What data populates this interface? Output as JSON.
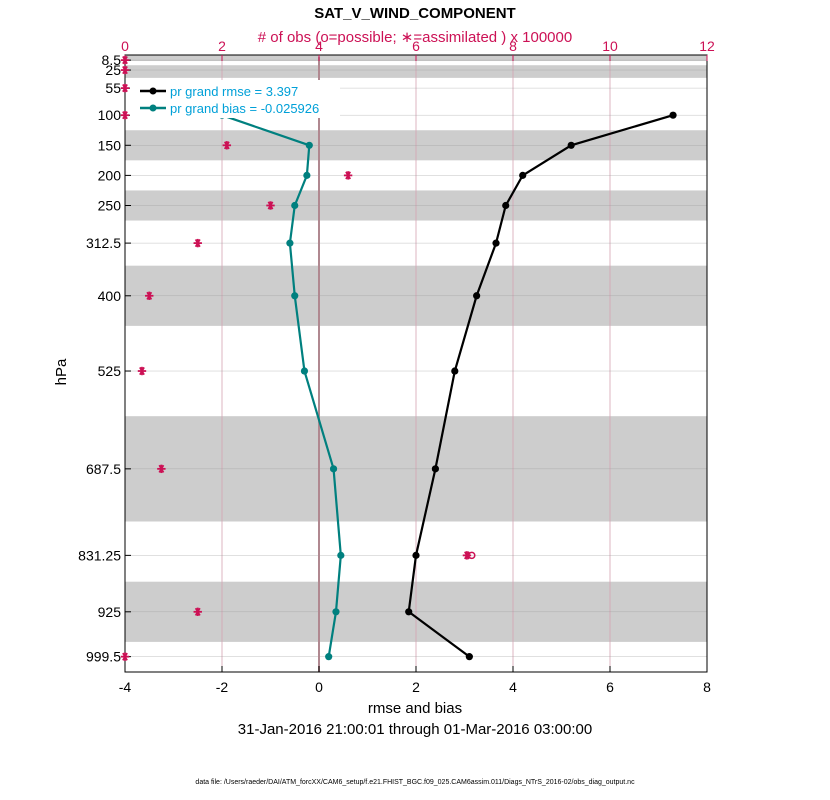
{
  "chart_data": {
    "type": "line",
    "title": "SAT_V_WIND_COMPONENT",
    "top_axis_label": "# of obs (o=possible; ∗=assimilated ) x 100000",
    "xlabel": "rmse and bias",
    "ylabel": "hPa",
    "date_range": "31-Jan-2016 21:00:01 through 01-Mar-2016 03:00:00",
    "footer": "data file: /Users/raeder/DAI/ATM_forcXX/CAM6_setup/f.e21.FHIST_BGC.f09_025.CAM6assim.011/Diags_NTrS_2016-02/obs_diag_output.nc",
    "xlim": [
      -4,
      8
    ],
    "x_ticks": [
      -4,
      -2,
      0,
      2,
      4,
      6,
      8
    ],
    "top_xlim": [
      0,
      12
    ],
    "top_ticks": [
      0,
      2,
      4,
      6,
      8,
      10,
      12
    ],
    "levels": [
      8.5,
      25,
      55,
      100,
      150,
      200,
      250,
      312.5,
      400,
      525,
      687.5,
      831.25,
      925,
      999.5
    ],
    "level_labels": [
      "8.5",
      "25",
      "55",
      "100",
      "150",
      "200",
      "250",
      "312.5",
      "400",
      "525",
      "687.5",
      "831.25",
      "925",
      "999.5"
    ],
    "bands": [
      [
        0,
        10
      ],
      [
        17,
        38
      ],
      [
        125,
        175
      ],
      [
        225,
        275
      ],
      [
        350,
        450
      ],
      [
        600,
        775
      ],
      [
        875,
        975
      ]
    ],
    "series": [
      {
        "name": "rmse",
        "legend": "pr grand rmse = 3.397",
        "color": "#000000",
        "levels": [
          100,
          150,
          200,
          250,
          312.5,
          400,
          525,
          687.5,
          831.25,
          925,
          999.5
        ],
        "values": [
          7.3,
          5.2,
          4.2,
          3.85,
          3.65,
          3.25,
          2.8,
          2.4,
          2.0,
          1.85,
          3.1
        ]
      },
      {
        "name": "bias",
        "legend": "pr grand bias = -0.025926",
        "color": "#00807f",
        "levels": [
          100,
          150,
          200,
          250,
          312.5,
          400,
          525,
          687.5,
          831.25,
          925,
          999.5
        ],
        "values": [
          -2.0,
          -0.2,
          -0.25,
          -0.5,
          -0.6,
          -0.5,
          -0.3,
          0.3,
          0.45,
          0.35,
          0.2
        ]
      }
    ],
    "obs_assimilated": {
      "color": "#cc1155",
      "levels": [
        8.5,
        25,
        55,
        100,
        150,
        200,
        250,
        312.5,
        400,
        525,
        687.5,
        831.25,
        925,
        999.5
      ],
      "values": [
        0.0,
        0.0,
        0.0,
        0.0,
        2.1,
        4.6,
        3.0,
        1.5,
        0.5,
        0.35,
        0.75,
        7.05,
        1.5,
        0.0
      ]
    },
    "obs_possible": {
      "color": "#cc1155",
      "levels": [
        831.25
      ],
      "values": [
        7.15
      ]
    }
  }
}
